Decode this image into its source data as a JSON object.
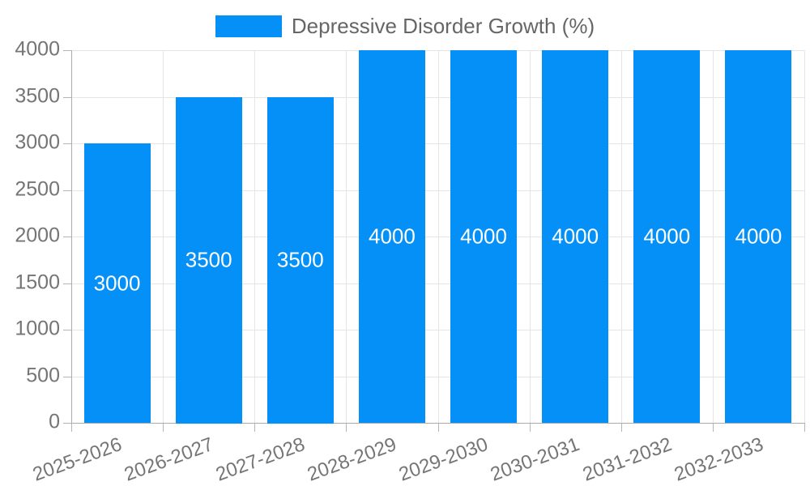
{
  "chart_data": {
    "type": "bar",
    "title": "Depressive Disorder Growth (%)",
    "categories": [
      "2025-2026",
      "2026-2027",
      "2027-2028",
      "2028-2029",
      "2029-2030",
      "2030-2031",
      "2031-2032",
      "2032-2033"
    ],
    "series": [
      {
        "name": "Depressive Disorder Growth (%)",
        "values": [
          3000,
          3500,
          3500,
          4000,
          4000,
          4000,
          4000,
          4000
        ]
      }
    ],
    "bar_labels": [
      "3000",
      "3500",
      "3500",
      "4000",
      "4000",
      "4000",
      "4000",
      "4000"
    ],
    "xlabel": "",
    "ylabel": "",
    "ylim": [
      0,
      4000
    ],
    "yticks": [
      0,
      500,
      1000,
      1500,
      2000,
      2500,
      3000,
      3500,
      4000
    ],
    "grid": true,
    "legend_position": "top",
    "x_tick_rotation_deg": -20,
    "colors": {
      "bar": "#0590f8",
      "bar_label": "#ffffff",
      "grid": "#e5e5e5",
      "axis": "#ababab",
      "tick": "#b5b5b5",
      "tick_text": "#757575",
      "legend_text": "#666666",
      "background": "#ffffff"
    }
  }
}
